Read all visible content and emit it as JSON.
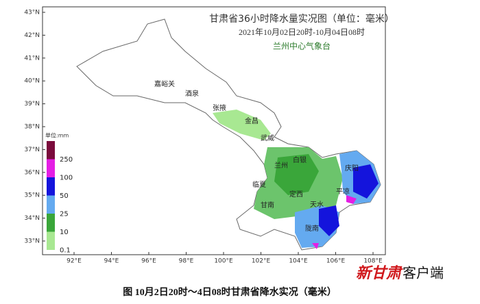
{
  "header": {
    "title": "甘肃省36小时降水量实况图（单位：毫米）",
    "subtitle": "2021年10月02日20时-10月04日08时",
    "org": "兰州中心气象台"
  },
  "lat_labels": [
    "43°N",
    "42°N",
    "41°N",
    "40°N",
    "39°N",
    "38°N",
    "37°N",
    "36°N",
    "35°N",
    "34°N",
    "33°N"
  ],
  "lon_labels": [
    "92°E",
    "94°E",
    "96°E",
    "98°E",
    "100°E",
    "102°E",
    "104°E",
    "106°E",
    "108°E"
  ],
  "legend": {
    "title": "单位:mm",
    "items": [
      {
        "label": "250",
        "color": "#7b0b3c"
      },
      {
        "label": "100",
        "color": "#e41ee4"
      },
      {
        "label": "50",
        "color": "#1414dc"
      },
      {
        "label": "25",
        "color": "#64aaf0"
      },
      {
        "label": "10",
        "color": "#3aa63a"
      },
      {
        "label": "0.1",
        "color": "#a8e892"
      }
    ]
  },
  "cities": [
    "嘉峪关",
    "酒泉",
    "张掖",
    "金昌",
    "武威",
    "兰州",
    "白银",
    "临夏",
    "定西",
    "庆阳",
    "平凉",
    "天水",
    "甘南",
    "陇南"
  ],
  "caption": "图 10月2日20时～4日08时甘肃省降水实况（毫米）",
  "watermark": {
    "brand": "新甘肃",
    "suffix": "客户端"
  }
}
